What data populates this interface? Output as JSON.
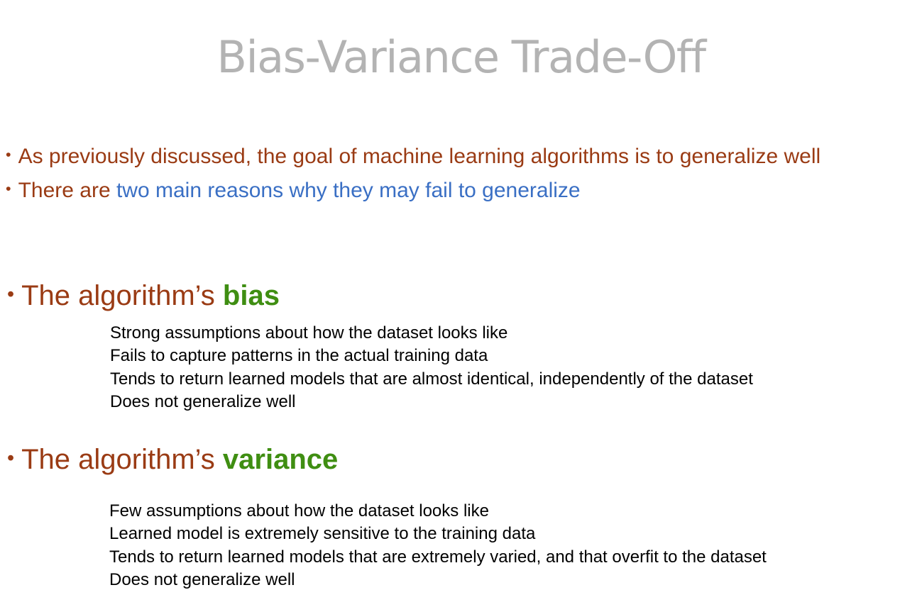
{
  "colors": {
    "title": "#b3b3b3",
    "body_text": "#9a3b14",
    "highlight_blue": "#3a6fc4",
    "highlight_green": "#3f8e12",
    "detail_text": "#000000"
  },
  "title": "Bias-Variance Trade-Off",
  "bullet_glyph": "•",
  "intro": {
    "line1": "As previously discussed, the goal of machine learning algorithms is to generalize well",
    "line2_prefix": "There are ",
    "line2_highlight": "two main reasons why they may fail to generalize"
  },
  "bias_section": {
    "heading_prefix": "The algorithm’s ",
    "heading_emphasis": "bias",
    "points": [
      "Strong assumptions about how the dataset looks like",
      "Fails to capture patterns in the actual training data",
      "Tends to return learned models that are almost identical, independently of the dataset",
      "Does not generalize well"
    ]
  },
  "variance_section": {
    "heading_prefix": "The algorithm’s ",
    "heading_emphasis": "variance",
    "points": [
      "Few assumptions about how the dataset looks like",
      "Learned model is extremely sensitive to the training data",
      "Tends to return learned models that are extremely varied, and that overfit to the dataset",
      "Does not generalize well"
    ]
  }
}
